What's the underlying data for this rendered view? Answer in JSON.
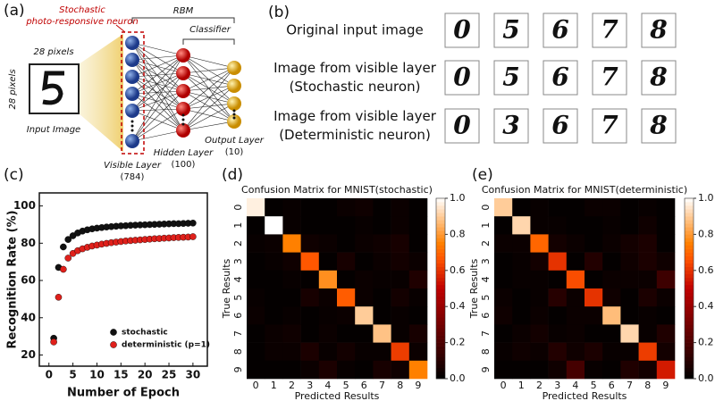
{
  "panel_labels": [
    "(a)",
    "(b)",
    "(c)",
    "(d)",
    "(e)"
  ],
  "diagram": {
    "neuron_label": [
      "Stochastic",
      "photo-responsive neuron"
    ],
    "rbm": "RBM",
    "classifier": "Classifier",
    "width_label": "28 pixels",
    "height_label": "28 pixels",
    "input_label": "Input Image",
    "visible": [
      "Visible Layer",
      "(784)"
    ],
    "hidden": [
      "Hidden Layer",
      "(100)"
    ],
    "output": [
      "Output Layer",
      "(10)"
    ]
  },
  "images": {
    "rows": [
      {
        "label": [
          "Original input image"
        ],
        "digits": [
          "0",
          "5",
          "6",
          "7",
          "8"
        ]
      },
      {
        "label": [
          "Image from visible layer",
          "(Stochastic neuron)"
        ],
        "digits": [
          "0",
          "5",
          "6",
          "7",
          "8"
        ]
      },
      {
        "label": [
          "Image from visible layer",
          "(Deterministic neuron)"
        ],
        "digits": [
          "0",
          "3",
          "6",
          "7",
          "8"
        ]
      }
    ]
  },
  "chart_data": [
    {
      "type": "scatter",
      "x_label": "Number of Epoch",
      "y_label": "Recognition Rate (%)",
      "x": [
        1,
        2,
        3,
        4,
        5,
        6,
        7,
        8,
        9,
        10,
        11,
        12,
        13,
        14,
        15,
        16,
        17,
        18,
        19,
        20,
        21,
        22,
        23,
        24,
        25,
        26,
        27,
        28,
        29,
        30
      ],
      "series": [
        {
          "name": "stochastic",
          "color": "#111111",
          "values": [
            29,
            67,
            78,
            82,
            84,
            85.5,
            86.5,
            87.2,
            87.7,
            88.1,
            88.4,
            88.7,
            88.9,
            89.1,
            89.3,
            89.4,
            89.6,
            89.7,
            89.8,
            89.9,
            90,
            90.1,
            90.2,
            90.3,
            90.4,
            90.5,
            90.5,
            90.6,
            90.7,
            90.8
          ]
        },
        {
          "name": "deterministic (p=1)",
          "color": "#e0201b",
          "values": [
            27,
            51,
            66,
            72,
            74.5,
            76,
            77,
            77.8,
            78.5,
            79,
            79.5,
            79.9,
            80.3,
            80.6,
            80.9,
            81.2,
            81.4,
            81.6,
            81.8,
            82,
            82.2,
            82.4,
            82.5,
            82.7,
            82.8,
            83,
            83.1,
            83.2,
            83.3,
            83.5
          ]
        }
      ],
      "xlim": [
        -2,
        33
      ],
      "xticks": [
        0,
        5,
        10,
        15,
        20,
        25,
        30
      ],
      "ylim": [
        14,
        107
      ],
      "yticks": [
        20,
        40,
        60,
        80,
        100
      ],
      "legend": "lower right"
    },
    {
      "type": "heatmap",
      "title": "Confusion Matrix for MNIST(stochastic)",
      "x_label": "Predicted Results",
      "y_label": "True Results",
      "x_categories": [
        "0",
        "1",
        "2",
        "3",
        "4",
        "5",
        "6",
        "7",
        "8",
        "9"
      ],
      "y_categories": [
        "0",
        "1",
        "2",
        "3",
        "4",
        "5",
        "6",
        "7",
        "8",
        "9"
      ],
      "colormap": "gist_heat",
      "zlim": [
        0,
        1
      ],
      "colorbar_ticks": [
        {
          "value": 0,
          "label": "0.0"
        },
        0.2,
        0.4,
        0.6,
        0.8,
        {
          "value": 1,
          "label": "1.0"
        }
      ],
      "values": [
        [
          0.97,
          0.01,
          0.02,
          0.01,
          0.01,
          0.03,
          0.04,
          0.01,
          0.03,
          0.01
        ],
        [
          0.01,
          1.0,
          0.02,
          0.01,
          0.01,
          0.01,
          0.02,
          0.01,
          0.03,
          0.01
        ],
        [
          0.02,
          0.03,
          0.75,
          0.04,
          0.03,
          0.01,
          0.03,
          0.04,
          0.06,
          0.01
        ],
        [
          0.01,
          0.02,
          0.04,
          0.67,
          0.01,
          0.06,
          0.01,
          0.03,
          0.05,
          0.03
        ],
        [
          0.01,
          0.01,
          0.02,
          0.01,
          0.78,
          0.01,
          0.03,
          0.02,
          0.02,
          0.08
        ],
        [
          0.02,
          0.01,
          0.01,
          0.06,
          0.03,
          0.68,
          0.03,
          0.01,
          0.05,
          0.02
        ],
        [
          0.03,
          0.01,
          0.02,
          0.01,
          0.02,
          0.03,
          0.9,
          0.01,
          0.02,
          0.01
        ],
        [
          0.01,
          0.03,
          0.04,
          0.01,
          0.03,
          0.01,
          0.01,
          0.88,
          0.02,
          0.06
        ],
        [
          0.01,
          0.03,
          0.03,
          0.07,
          0.02,
          0.05,
          0.02,
          0.02,
          0.62,
          0.03
        ],
        [
          0.01,
          0.01,
          0.01,
          0.03,
          0.07,
          0.02,
          0.01,
          0.06,
          0.04,
          0.75
        ]
      ]
    },
    {
      "type": "heatmap",
      "title": "Confusion Matrix for MNIST(deterministic)",
      "x_label": "Predicted Results",
      "y_label": "True Results",
      "x_categories": [
        "0",
        "1",
        "2",
        "3",
        "4",
        "5",
        "6",
        "7",
        "8",
        "9"
      ],
      "y_categories": [
        "0",
        "1",
        "2",
        "3",
        "4",
        "5",
        "6",
        "7",
        "8",
        "9"
      ],
      "colormap": "gist_heat",
      "zlim": [
        0,
        1
      ],
      "colorbar_ticks": [
        {
          "value": 0,
          "label": "0.0"
        },
        0.2,
        0.4,
        0.6,
        0.8,
        {
          "value": 1,
          "label": "1.0"
        }
      ],
      "values": [
        [
          0.9,
          0.01,
          0.02,
          0.01,
          0.01,
          0.03,
          0.03,
          0.01,
          0.02,
          0.01
        ],
        [
          0.01,
          0.92,
          0.02,
          0.02,
          0.01,
          0.01,
          0.02,
          0.01,
          0.04,
          0.01
        ],
        [
          0.03,
          0.03,
          0.7,
          0.05,
          0.03,
          0.01,
          0.03,
          0.05,
          0.07,
          0.01
        ],
        [
          0.01,
          0.02,
          0.05,
          0.6,
          0.01,
          0.09,
          0.01,
          0.04,
          0.07,
          0.04
        ],
        [
          0.01,
          0.02,
          0.02,
          0.01,
          0.65,
          0.01,
          0.03,
          0.03,
          0.03,
          0.16
        ],
        [
          0.03,
          0.01,
          0.02,
          0.1,
          0.03,
          0.6,
          0.04,
          0.01,
          0.07,
          0.03
        ],
        [
          0.04,
          0.01,
          0.03,
          0.01,
          0.03,
          0.03,
          0.87,
          0.01,
          0.02,
          0.01
        ],
        [
          0.01,
          0.03,
          0.05,
          0.02,
          0.03,
          0.01,
          0.01,
          0.92,
          0.02,
          0.08
        ],
        [
          0.02,
          0.04,
          0.03,
          0.09,
          0.04,
          0.07,
          0.02,
          0.02,
          0.62,
          0.05
        ],
        [
          0.01,
          0.01,
          0.01,
          0.04,
          0.18,
          0.02,
          0.01,
          0.08,
          0.05,
          0.55
        ]
      ]
    }
  ]
}
